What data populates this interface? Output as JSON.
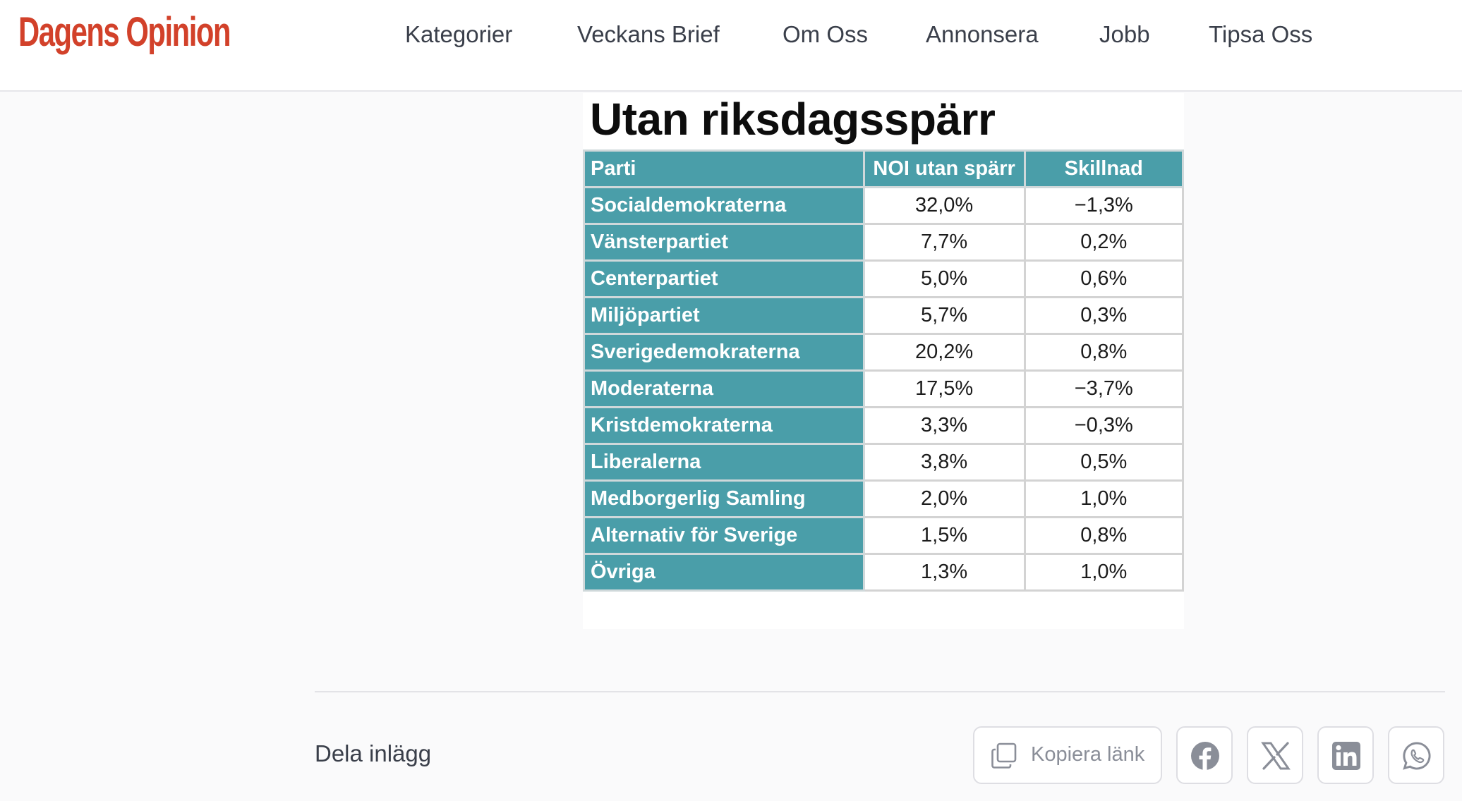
{
  "header": {
    "logo": "Dagens Opinion",
    "nav": [
      {
        "label": "Kategorier"
      },
      {
        "label": "Veckans Brief"
      },
      {
        "label": "Om Oss"
      },
      {
        "label": "Annonsera"
      },
      {
        "label": "Jobb"
      },
      {
        "label": "Tipsa Oss"
      }
    ]
  },
  "table": {
    "title": "Utan riksdagsspärr",
    "headers": [
      "Parti",
      "NOI utan spärr",
      "Skillnad"
    ],
    "rows": [
      {
        "party": "Socialdemokraterna",
        "value": "32,0%",
        "diff": "−1,3%"
      },
      {
        "party": "Vänsterpartiet",
        "value": "7,7%",
        "diff": "0,2%"
      },
      {
        "party": "Centerpartiet",
        "value": "5,0%",
        "diff": "0,6%"
      },
      {
        "party": "Miljöpartiet",
        "value": "5,7%",
        "diff": "0,3%"
      },
      {
        "party": "Sverigedemokraterna",
        "value": "20,2%",
        "diff": "0,8%"
      },
      {
        "party": "Moderaterna",
        "value": "17,5%",
        "diff": "−3,7%"
      },
      {
        "party": "Kristdemokraterna",
        "value": "3,3%",
        "diff": "−0,3%"
      },
      {
        "party": "Liberalerna",
        "value": "3,8%",
        "diff": "0,5%"
      },
      {
        "party": "Medborgerlig Samling",
        "value": "2,0%",
        "diff": "1,0%"
      },
      {
        "party": "Alternativ för Sverige",
        "value": "1,5%",
        "diff": "0,8%"
      },
      {
        "party": "Övriga",
        "value": "1,3%",
        "diff": "1,0%"
      }
    ],
    "header_color": "#4a9ea9"
  },
  "share": {
    "label": "Dela inlägg",
    "copy_label": "Kopiera länk",
    "buttons": [
      {
        "icon": "facebook-icon"
      },
      {
        "icon": "x-icon"
      },
      {
        "icon": "linkedin-icon"
      },
      {
        "icon": "whatsapp-icon"
      }
    ]
  },
  "colors": {
    "brand": "#d2412a",
    "table_teal": "#4a9ea9",
    "icon_gray": "#8a8e98"
  }
}
